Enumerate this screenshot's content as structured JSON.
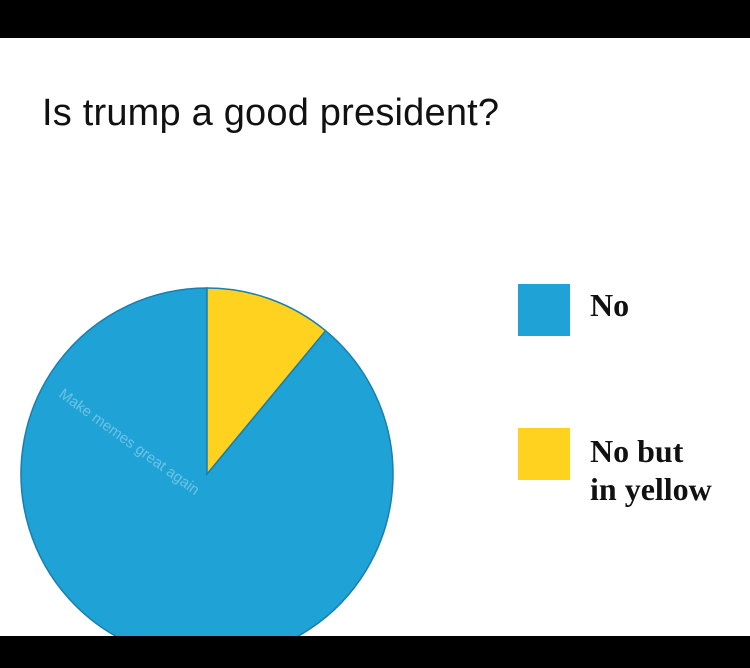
{
  "title": "Is trump a good president?",
  "watermark": "Make memes great again",
  "chart_data": {
    "type": "pie",
    "title": "Is trump a good president?",
    "slices": [
      {
        "label": "No",
        "value": 89,
        "color": "#1fa2d6"
      },
      {
        "label": "No but\nin yellow",
        "value": 11,
        "color": "#ffd21f"
      }
    ],
    "legend_position": "right"
  }
}
